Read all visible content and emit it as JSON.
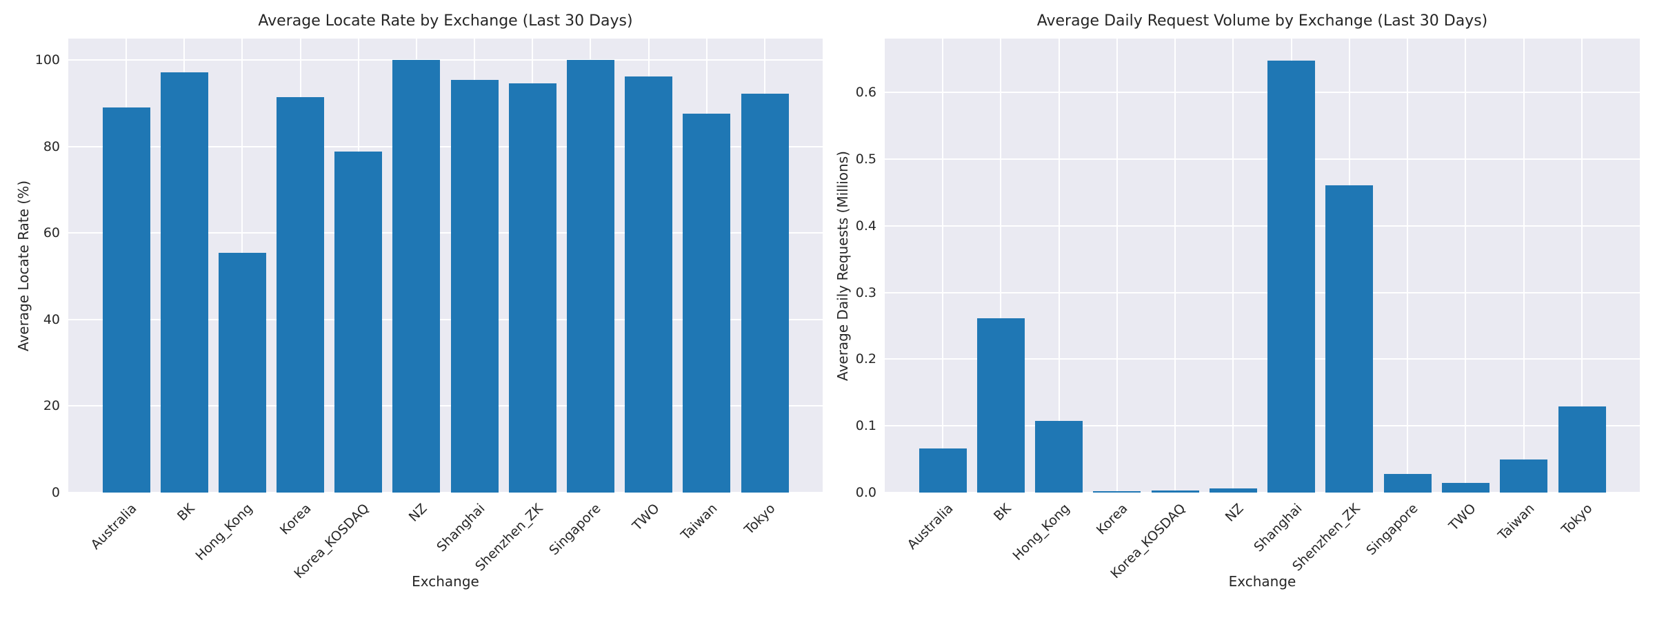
{
  "style": {
    "figure_background": "#ffffff",
    "plot_background": "#eaeaf2",
    "grid_color": "#ffffff",
    "bar_color": "#1f77b4",
    "text_color": "#262626"
  },
  "chart_data": [
    {
      "type": "bar",
      "title": "Average Locate Rate by Exchange (Last 30 Days)",
      "xlabel": "Exchange",
      "ylabel": "Average Locate Rate (%)",
      "categories": [
        "Australia",
        "BK",
        "Hong_Kong",
        "Korea",
        "Korea_KOSDAQ",
        "NZ",
        "Shanghai",
        "Shenzhen_ZK",
        "Singapore",
        "TWO",
        "Taiwan",
        "Tokyo"
      ],
      "values": [
        89.0,
        97.2,
        55.4,
        91.4,
        78.9,
        100.0,
        95.5,
        94.6,
        100.0,
        96.2,
        87.6,
        92.3
      ],
      "ylim": [
        0,
        105
      ],
      "yticks": [
        {
          "label": "0",
          "value": 0
        },
        {
          "label": "20",
          "value": 20
        },
        {
          "label": "40",
          "value": 40
        },
        {
          "label": "60",
          "value": 60
        },
        {
          "label": "80",
          "value": 80
        },
        {
          "label": "100",
          "value": 100
        }
      ],
      "grid": true,
      "legend": "none",
      "tick_rotation": 45
    },
    {
      "type": "bar",
      "title": "Average Daily Request Volume by Exchange (Last 30 Days)",
      "xlabel": "Exchange",
      "ylabel": "Average Daily Requests (Millions)",
      "categories": [
        "Australia",
        "BK",
        "Hong_Kong",
        "Korea",
        "Korea_KOSDAQ",
        "NZ",
        "Shanghai",
        "Shenzhen_ZK",
        "Singapore",
        "TWO",
        "Taiwan",
        "Tokyo"
      ],
      "values": [
        0.066,
        0.261,
        0.107,
        0.002,
        0.003,
        0.006,
        0.648,
        0.461,
        0.028,
        0.014,
        0.05,
        0.129
      ],
      "ylim": [
        0,
        0.681
      ],
      "yticks": [
        {
          "label": "0.0",
          "value": 0.0
        },
        {
          "label": "0.1",
          "value": 0.1
        },
        {
          "label": "0.2",
          "value": 0.2
        },
        {
          "label": "0.3",
          "value": 0.3
        },
        {
          "label": "0.4",
          "value": 0.4
        },
        {
          "label": "0.5",
          "value": 0.5
        },
        {
          "label": "0.6",
          "value": 0.6
        }
      ],
      "grid": true,
      "legend": "none",
      "tick_rotation": 45
    }
  ]
}
